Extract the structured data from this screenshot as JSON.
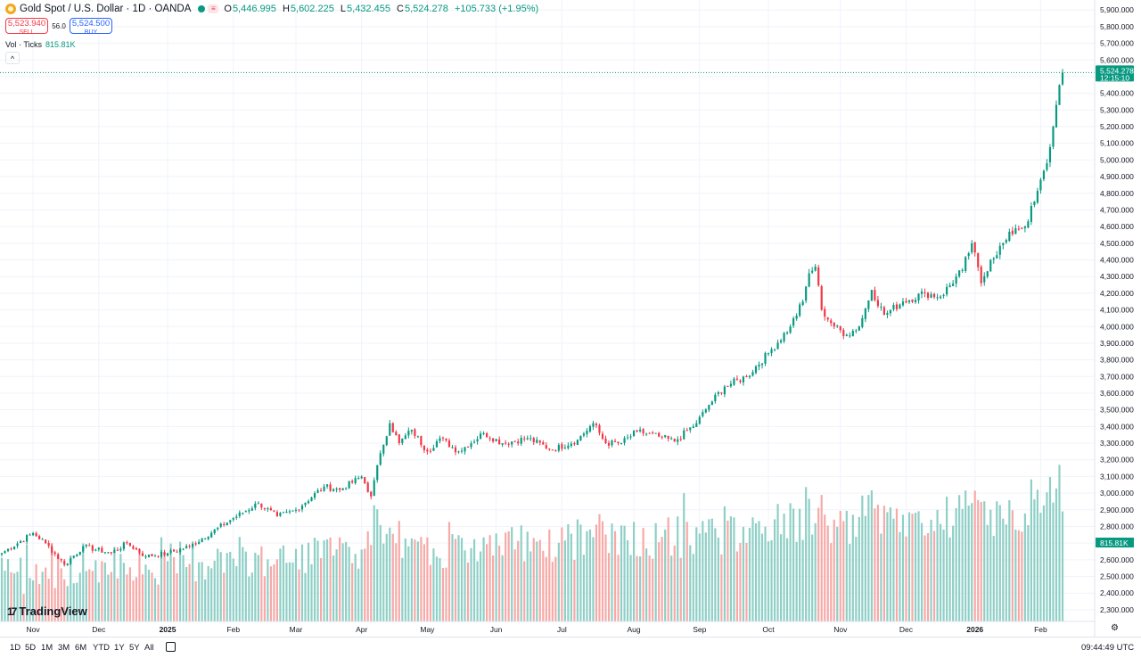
{
  "legend": {
    "title": "Gold Spot / U.S. Dollar · 1D · OANDA",
    "o_label": "O",
    "o": "5,446.995",
    "h_label": "H",
    "h": "5,602.225",
    "l_label": "L",
    "l": "5,432.455",
    "c_label": "C",
    "c": "5,524.278",
    "change": "+105.733 (+1.95%)",
    "pill": "≡"
  },
  "trade": {
    "sell_price": "5,523.940",
    "sell_label": "SELL",
    "spread": "56.0",
    "buy_price": "5,524.500",
    "buy_label": "BUY"
  },
  "volume_legend": {
    "label": "Vol · Ticks",
    "value": "815.81K"
  },
  "collapse_glyph": "^",
  "brand": {
    "mark": "17",
    "name": "TradingView"
  },
  "ranges": [
    "1D",
    "5D",
    "1M",
    "3M",
    "6M",
    "YTD",
    "1Y",
    "5Y",
    "All"
  ],
  "clock": "09:44:49 UTC",
  "gear_glyph": "⚙",
  "colors": {
    "up": "#089981",
    "down": "#f23645",
    "up_vol": "#8ecfc6",
    "down_vol": "#f7a9a7",
    "grid": "#f0f3fa",
    "axis_text": "#131722"
  },
  "chart_data": {
    "type": "candlestick",
    "title": "Gold Spot / U.S. Dollar · 1D · OANDA",
    "ylim": [
      2230,
      5960
    ],
    "y_ticks": [
      "5,900.000",
      "5,800.000",
      "5,700.000",
      "5,600.000",
      "5,500.000",
      "5,400.000",
      "5,300.000",
      "5,200.000",
      "5,100.000",
      "5,000.000",
      "4,900.000",
      "4,800.000",
      "4,700.000",
      "4,600.000",
      "4,500.000",
      "4,400.000",
      "4,300.000",
      "4,200.000",
      "4,100.000",
      "4,000.000",
      "3,900.000",
      "3,800.000",
      "3,700.000",
      "3,600.000",
      "3,500.000",
      "3,400.000",
      "3,300.000",
      "3,200.000",
      "3,100.000",
      "3,000.000",
      "2,900.000",
      "2,800.000",
      "2,700.000",
      "2,600.000",
      "2,500.000",
      "2,400.000",
      "2,300.000"
    ],
    "y_tick_values": [
      5900,
      5800,
      5700,
      5600,
      5500,
      5400,
      5300,
      5200,
      5100,
      5000,
      4900,
      4800,
      4700,
      4600,
      4500,
      4400,
      4300,
      4200,
      4100,
      4000,
      3900,
      3800,
      3700,
      3600,
      3500,
      3400,
      3300,
      3200,
      3100,
      3000,
      2900,
      2800,
      2700,
      2600,
      2500,
      2400,
      2300
    ],
    "x_ticks": [
      {
        "label": "Nov",
        "day": 10
      },
      {
        "label": "Dec",
        "day": 31
      },
      {
        "label": "2025",
        "day": 53,
        "bold": true
      },
      {
        "label": "Feb",
        "day": 74
      },
      {
        "label": "Mar",
        "day": 94
      },
      {
        "label": "Apr",
        "day": 115
      },
      {
        "label": "May",
        "day": 136
      },
      {
        "label": "Jun",
        "day": 158
      },
      {
        "label": "Jul",
        "day": 179
      },
      {
        "label": "Aug",
        "day": 202
      },
      {
        "label": "Sep",
        "day": 223
      },
      {
        "label": "Oct",
        "day": 245
      },
      {
        "label": "Nov",
        "day": 268
      },
      {
        "label": "Dec",
        "day": 289
      },
      {
        "label": "2026",
        "day": 311,
        "bold": true
      },
      {
        "label": "Feb",
        "day": 332
      }
    ],
    "current_price": "5,524.278",
    "current_value": 5524.278,
    "countdown": "12:15:10",
    "volume_label": "815.81K",
    "num_days": 336,
    "price_anchors": [
      [
        0,
        2640
      ],
      [
        10,
        2760
      ],
      [
        14,
        2700
      ],
      [
        20,
        2570
      ],
      [
        26,
        2680
      ],
      [
        35,
        2640
      ],
      [
        40,
        2700
      ],
      [
        46,
        2620
      ],
      [
        53,
        2640
      ],
      [
        60,
        2680
      ],
      [
        74,
        2850
      ],
      [
        82,
        2940
      ],
      [
        88,
        2860
      ],
      [
        94,
        2900
      ],
      [
        103,
        3040
      ],
      [
        108,
        3020
      ],
      [
        115,
        3100
      ],
      [
        118,
        2980
      ],
      [
        121,
        3240
      ],
      [
        124,
        3420
      ],
      [
        127,
        3300
      ],
      [
        131,
        3380
      ],
      [
        136,
        3250
      ],
      [
        140,
        3330
      ],
      [
        146,
        3250
      ],
      [
        154,
        3360
      ],
      [
        160,
        3300
      ],
      [
        168,
        3330
      ],
      [
        176,
        3260
      ],
      [
        184,
        3320
      ],
      [
        189,
        3420
      ],
      [
        193,
        3300
      ],
      [
        198,
        3300
      ],
      [
        203,
        3370
      ],
      [
        210,
        3340
      ],
      [
        215,
        3310
      ],
      [
        222,
        3420
      ],
      [
        226,
        3530
      ],
      [
        231,
        3640
      ],
      [
        238,
        3700
      ],
      [
        245,
        3840
      ],
      [
        252,
        4000
      ],
      [
        256,
        4150
      ],
      [
        258,
        4320
      ],
      [
        260,
        4360
      ],
      [
        262,
        4100
      ],
      [
        266,
        4000
      ],
      [
        270,
        3950
      ],
      [
        274,
        4000
      ],
      [
        278,
        4220
      ],
      [
        282,
        4070
      ],
      [
        288,
        4150
      ],
      [
        295,
        4200
      ],
      [
        300,
        4180
      ],
      [
        307,
        4340
      ],
      [
        310,
        4500
      ],
      [
        313,
        4260
      ],
      [
        316,
        4400
      ],
      [
        321,
        4520
      ],
      [
        324,
        4590
      ],
      [
        327,
        4600
      ],
      [
        330,
        4750
      ],
      [
        334,
        4980
      ],
      [
        336,
        5200
      ],
      [
        338,
        5450
      ],
      [
        339,
        5524
      ]
    ],
    "volume_range": [
      2230,
      3170
    ]
  }
}
